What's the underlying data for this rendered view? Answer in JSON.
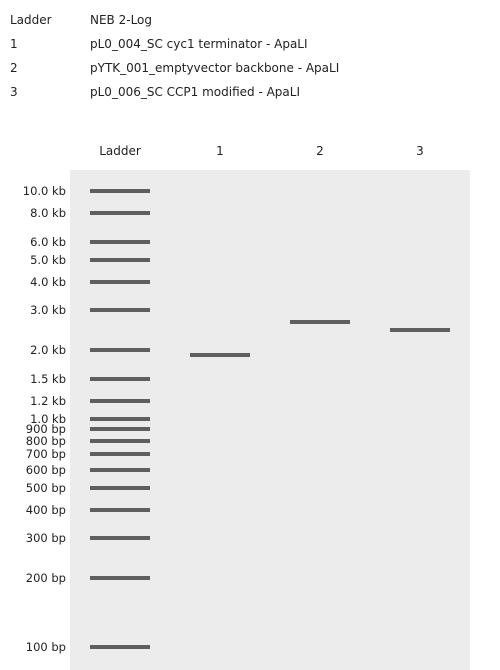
{
  "legend": [
    {
      "key": "Ladder",
      "desc": "NEB 2-Log"
    },
    {
      "key": "1",
      "desc": "pL0_004_SC cyc1 terminator - ApaLI"
    },
    {
      "key": "2",
      "desc": "pYTK_001_emptyvector backbone - ApaLI"
    },
    {
      "key": "3",
      "desc": "pL0_006_SC CCP1 modified - ApaLI"
    }
  ],
  "lanes": [
    "Ladder",
    "1",
    "2",
    "3"
  ],
  "ladder": [
    {
      "label": "10.0 kb",
      "bp": 10000
    },
    {
      "label": "8.0 kb",
      "bp": 8000
    },
    {
      "label": "6.0 kb",
      "bp": 6000
    },
    {
      "label": "5.0 kb",
      "bp": 5000
    },
    {
      "label": "4.0 kb",
      "bp": 4000
    },
    {
      "label": "3.0 kb",
      "bp": 3000
    },
    {
      "label": "2.0 kb",
      "bp": 2000
    },
    {
      "label": "1.5 kb",
      "bp": 1500
    },
    {
      "label": "1.2 kb",
      "bp": 1200
    },
    {
      "label": "1.0 kb",
      "bp": 1000
    },
    {
      "label": "900 bp",
      "bp": 900
    },
    {
      "label": "800 bp",
      "bp": 800
    },
    {
      "label": "700 bp",
      "bp": 700
    },
    {
      "label": "600 bp",
      "bp": 600
    },
    {
      "label": "500 bp",
      "bp": 500
    },
    {
      "label": "400 bp",
      "bp": 400
    },
    {
      "label": "300 bp",
      "bp": 300
    },
    {
      "label": "200 bp",
      "bp": 200
    },
    {
      "label": "100 bp",
      "bp": 100
    }
  ],
  "samples": [
    {
      "lane": "1",
      "bands_bp": [
        1900
      ]
    },
    {
      "lane": "2",
      "bands_bp": [
        2650
      ]
    },
    {
      "lane": "3",
      "bands_bp": [
        2450
      ]
    }
  ],
  "colors": {
    "gel": "#ececec",
    "band": "#5f5f5f",
    "text": "#222222"
  }
}
